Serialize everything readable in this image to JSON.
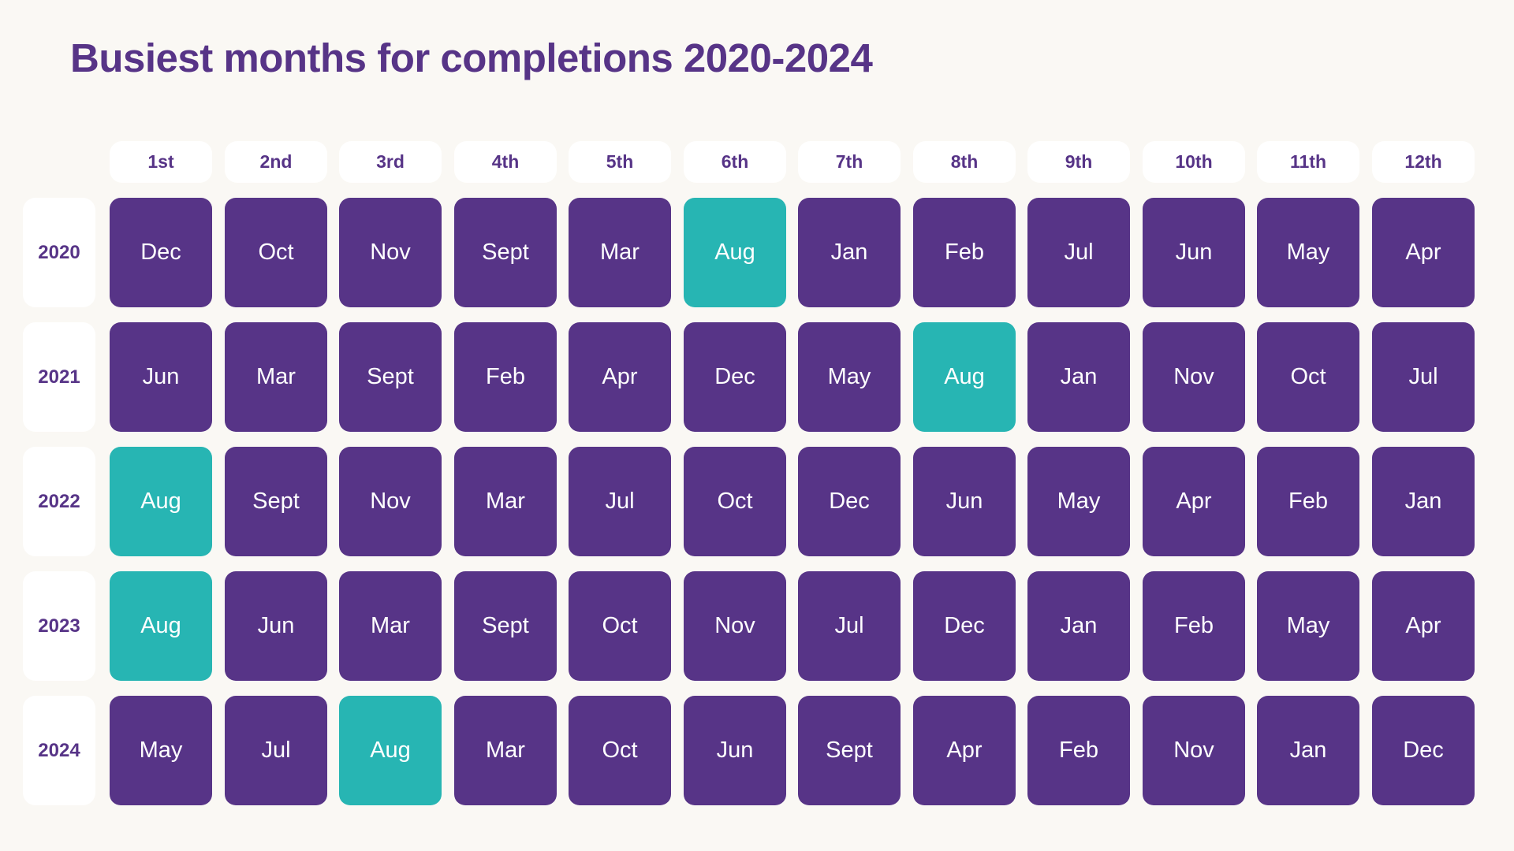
{
  "title": "Busiest months for completions 2020-2024",
  "colors": {
    "background": "#faf8f4",
    "default_cell": "#573487",
    "highlight_cell": "#27b5b3",
    "header_bg": "#ffffff",
    "text_primary": "#573487"
  },
  "chart_data": {
    "type": "table",
    "title": "Busiest months for completions 2020-2024",
    "columns": [
      "1st",
      "2nd",
      "3rd",
      "4th",
      "5th",
      "6th",
      "7th",
      "8th",
      "9th",
      "10th",
      "11th",
      "12th"
    ],
    "highlight_value": "Aug",
    "rows": [
      {
        "year": "2020",
        "months": [
          "Dec",
          "Oct",
          "Nov",
          "Sept",
          "Mar",
          "Aug",
          "Jan",
          "Feb",
          "Jul",
          "Jun",
          "May",
          "Apr"
        ]
      },
      {
        "year": "2021",
        "months": [
          "Jun",
          "Mar",
          "Sept",
          "Feb",
          "Apr",
          "Dec",
          "May",
          "Aug",
          "Jan",
          "Nov",
          "Oct",
          "Jul"
        ]
      },
      {
        "year": "2022",
        "months": [
          "Aug",
          "Sept",
          "Nov",
          "Mar",
          "Jul",
          "Oct",
          "Dec",
          "Jun",
          "May",
          "Apr",
          "Feb",
          "Jan"
        ]
      },
      {
        "year": "2023",
        "months": [
          "Aug",
          "Jun",
          "Mar",
          "Sept",
          "Oct",
          "Nov",
          "Jul",
          "Dec",
          "Jan",
          "Feb",
          "May",
          "Apr"
        ]
      },
      {
        "year": "2024",
        "months": [
          "May",
          "Jul",
          "Aug",
          "Mar",
          "Oct",
          "Jun",
          "Sept",
          "Apr",
          "Feb",
          "Nov",
          "Jan",
          "Dec"
        ]
      }
    ]
  }
}
